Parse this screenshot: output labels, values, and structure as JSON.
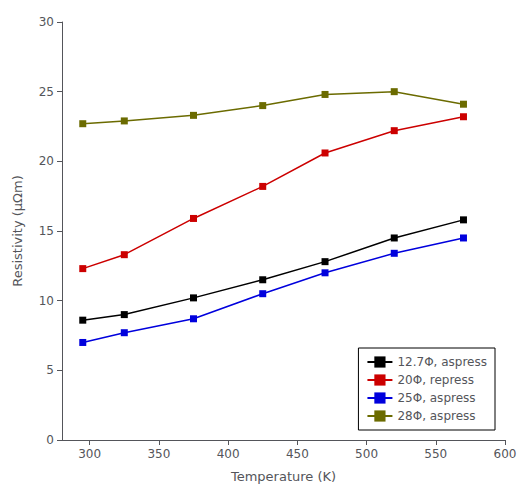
{
  "chart_data": {
    "type": "line",
    "xlabel": "Temperature (K)",
    "ylabel": "Resistivity (μΩm)",
    "x": [
      295,
      325,
      375,
      425,
      470,
      520,
      570
    ],
    "series": [
      {
        "name": "12.7Φ, aspress",
        "color": "#000000",
        "values": [
          8.6,
          9.0,
          10.2,
          11.5,
          12.8,
          14.5,
          15.8
        ]
      },
      {
        "name": "20Φ, repress",
        "color": "#cc0000",
        "values": [
          12.3,
          13.3,
          15.9,
          18.2,
          20.6,
          22.2,
          23.2
        ]
      },
      {
        "name": "25Φ, aspress",
        "color": "#0000dd",
        "values": [
          7.0,
          7.7,
          8.7,
          10.5,
          12.0,
          13.4,
          14.5
        ]
      },
      {
        "name": "28Φ, aspress",
        "color": "#6b6b00",
        "values": [
          22.7,
          22.9,
          23.3,
          24.0,
          24.8,
          25.0,
          24.1
        ]
      }
    ],
    "xlim": [
      280,
      600
    ],
    "ylim": [
      0,
      30
    ],
    "xticks": [
      300,
      350,
      400,
      450,
      500,
      550,
      600
    ],
    "yticks": [
      0,
      5,
      10,
      15,
      20,
      25,
      30
    ],
    "marker": "square",
    "legend": "lower right",
    "grid": false
  }
}
